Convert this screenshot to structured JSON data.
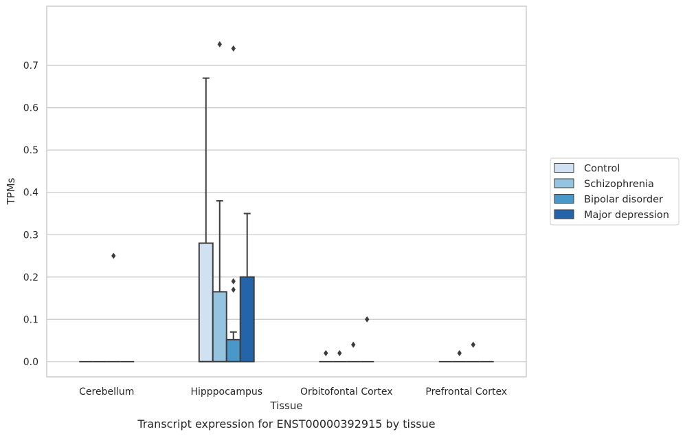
{
  "chart_data": {
    "type": "box",
    "caption": "Transcript expression for ENST00000392915 by tissue",
    "xlabel": "Tissue",
    "ylabel": "TPMs",
    "ylim": [
      -0.036,
      0.84
    ],
    "yticks": [
      0.0,
      0.1,
      0.2,
      0.3,
      0.4,
      0.5,
      0.6,
      0.7
    ],
    "ytick_labels": [
      "0.0",
      "0.1",
      "0.2",
      "0.3",
      "0.4",
      "0.5",
      "0.6",
      "0.7"
    ],
    "grid": "horizontal",
    "legend_placement": "right",
    "categories": [
      "Cerebellum",
      "Hipppocampus",
      "Orbitofontal Cortex",
      "Prefrontal Cortex"
    ],
    "series": [
      {
        "name": "Control",
        "color": "#d0e1f2",
        "boxes": [
          {
            "q1": 0,
            "median": 0,
            "q3": 0,
            "whisker_low": 0,
            "whisker_high": 0,
            "outliers": []
          },
          {
            "q1": 0,
            "median": 0,
            "q3": 0.28,
            "whisker_low": 0,
            "whisker_high": 0.67,
            "outliers": []
          },
          {
            "q1": 0,
            "median": 0,
            "q3": 0,
            "whisker_low": 0,
            "whisker_high": 0,
            "outliers": [
              0.02
            ]
          },
          {
            "q1": 0,
            "median": 0,
            "q3": 0,
            "whisker_low": 0,
            "whisker_high": 0,
            "outliers": []
          }
        ]
      },
      {
        "name": "Schizophrenia",
        "color": "#94c4df",
        "boxes": [
          {
            "q1": 0,
            "median": 0,
            "q3": 0,
            "whisker_low": 0,
            "whisker_high": 0,
            "outliers": []
          },
          {
            "q1": 0,
            "median": 0,
            "q3": 0.165,
            "whisker_low": 0,
            "whisker_high": 0.38,
            "outliers": [
              0.75
            ]
          },
          {
            "q1": 0,
            "median": 0,
            "q3": 0,
            "whisker_low": 0,
            "whisker_high": 0,
            "outliers": [
              0.02
            ]
          },
          {
            "q1": 0,
            "median": 0,
            "q3": 0,
            "whisker_low": 0,
            "whisker_high": 0,
            "outliers": [
              0.02
            ]
          }
        ]
      },
      {
        "name": "Bipolar disorder",
        "color": "#4a98c9",
        "boxes": [
          {
            "q1": 0,
            "median": 0,
            "q3": 0,
            "whisker_low": 0,
            "whisker_high": 0,
            "outliers": [
              0.25
            ]
          },
          {
            "q1": 0,
            "median": 0,
            "q3": 0.052,
            "whisker_low": 0,
            "whisker_high": 0.07,
            "outliers": [
              0.17,
              0.19,
              0.74
            ]
          },
          {
            "q1": 0,
            "median": 0,
            "q3": 0,
            "whisker_low": 0,
            "whisker_high": 0,
            "outliers": [
              0.04
            ]
          },
          {
            "q1": 0,
            "median": 0,
            "q3": 0,
            "whisker_low": 0,
            "whisker_high": 0,
            "outliers": [
              0.04
            ]
          }
        ]
      },
      {
        "name": "Major depression",
        "color": "#2465a9",
        "boxes": [
          {
            "q1": 0,
            "median": 0,
            "q3": 0,
            "whisker_low": 0,
            "whisker_high": 0,
            "outliers": []
          },
          {
            "q1": 0,
            "median": 0,
            "q3": 0.2,
            "whisker_low": 0,
            "whisker_high": 0.35,
            "outliers": []
          },
          {
            "q1": 0,
            "median": 0,
            "q3": 0,
            "whisker_low": 0,
            "whisker_high": 0,
            "outliers": [
              0.1
            ]
          },
          {
            "q1": 0,
            "median": 0,
            "q3": 0,
            "whisker_low": 0,
            "whisker_high": 0,
            "outliers": []
          }
        ]
      }
    ]
  },
  "style": {
    "grid_color": "#cccccc",
    "frame_color": "#cccccc",
    "line_color": "#3d3d3d"
  }
}
